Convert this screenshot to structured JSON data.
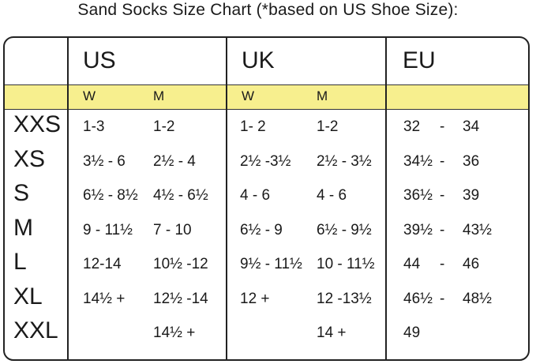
{
  "title": "Sand Socks Size Chart (*based on US Shoe Size):",
  "headers": {
    "us": "US",
    "uk": "UK",
    "eu": "EU"
  },
  "subheaders": {
    "us_w": "W",
    "us_m": "M",
    "uk_w": "W",
    "uk_m": "M"
  },
  "sizes": [
    "XXS",
    "XS",
    "S",
    "M",
    "L",
    "XL",
    "XXL"
  ],
  "rows": [
    {
      "us_w": "1-3",
      "us_m": "1-2",
      "uk_w": "1- 2",
      "uk_m": "1-2",
      "eu_from": "32",
      "eu_sep": "-",
      "eu_to": "34"
    },
    {
      "us_w": "3½ - 6",
      "us_m": "2½ - 4",
      "uk_w": "2½ -3½",
      "uk_m": "2½ - 3½",
      "eu_from": "34½",
      "eu_sep": "-",
      "eu_to": "36"
    },
    {
      "us_w": "6½ - 8½",
      "us_m": "4½ - 6½",
      "uk_w": "4 - 6",
      "uk_m": "4 - 6",
      "eu_from": "36½",
      "eu_sep": "-",
      "eu_to": "39"
    },
    {
      "us_w": "9 - 11½",
      "us_m": "7 - 10",
      "uk_w": "6½ - 9",
      "uk_m": "6½ - 9½",
      "eu_from": "39½",
      "eu_sep": "-",
      "eu_to": "43½"
    },
    {
      "us_w": "12-14",
      "us_m": "10½ -12",
      "uk_w": "9½ - 11½",
      "uk_m": "10 - 11½",
      "eu_from": "44",
      "eu_sep": "-",
      "eu_to": "46"
    },
    {
      "us_w": "14½ +",
      "us_m": "12½ -14",
      "uk_w": "12 +",
      "uk_m": "12 -13½",
      "eu_from": "46½",
      "eu_sep": "-",
      "eu_to": "48½"
    },
    {
      "us_w": "",
      "us_m": "14½ +",
      "uk_w": "",
      "uk_m": "14 +",
      "eu_from": "49",
      "eu_sep": "",
      "eu_to": ""
    }
  ],
  "colors": {
    "band": "#f7ef8e",
    "border": "#222222",
    "text": "#1a1a1a"
  }
}
